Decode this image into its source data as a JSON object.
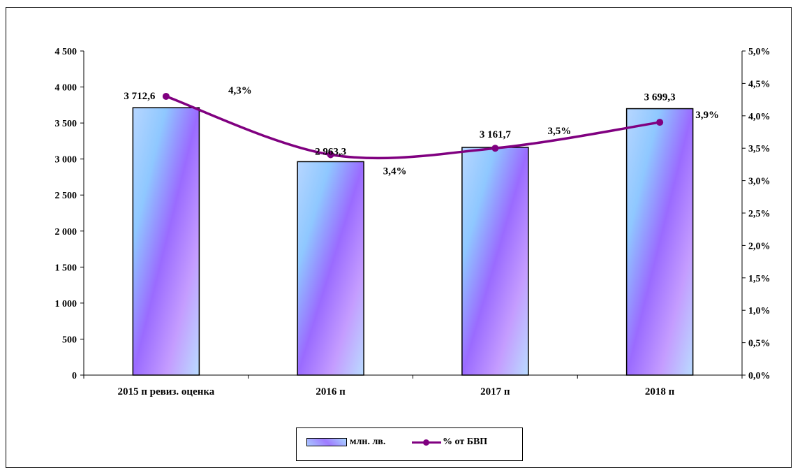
{
  "chart_data": {
    "type": "bar",
    "title": "",
    "categories": [
      "2015 п ревиз. оценка",
      "2016 п",
      "2017 п",
      "2018 п"
    ],
    "series": [
      {
        "name": "млн. лв.",
        "type": "bar",
        "axis": "left",
        "values": [
          3712.6,
          2963.3,
          3161.7,
          3699.3
        ],
        "labels": [
          "3 712,6",
          "2 963,3",
          "3 161,7",
          "3 699,3"
        ],
        "color": "#9f7bff"
      },
      {
        "name": "% от БВП",
        "type": "line",
        "axis": "right",
        "values": [
          4.3,
          3.4,
          3.5,
          3.9
        ],
        "labels": [
          "4,3%",
          "3,4%",
          "3,5%",
          "3,9%"
        ],
        "color": "#800080"
      }
    ],
    "y_left": {
      "range": [
        0,
        4500
      ],
      "ticks": [
        0,
        500,
        1000,
        1500,
        2000,
        2500,
        3000,
        3500,
        4000,
        4500
      ],
      "tick_labels": [
        "0",
        "500",
        "1 000",
        "1 500",
        "2 000",
        "2 500",
        "3 000",
        "3 500",
        "4 000",
        "4 500"
      ]
    },
    "y_right": {
      "range": [
        0,
        5
      ],
      "ticks": [
        0,
        0.5,
        1,
        1.5,
        2,
        2.5,
        3,
        3.5,
        4,
        4.5,
        5
      ],
      "tick_labels": [
        "0,0%",
        "0,5%",
        "1,0%",
        "1,5%",
        "2,0%",
        "2,5%",
        "3,0%",
        "3,5%",
        "4,0%",
        "4,5%",
        "5,0%"
      ]
    },
    "grid": false,
    "legend": "bottom"
  }
}
